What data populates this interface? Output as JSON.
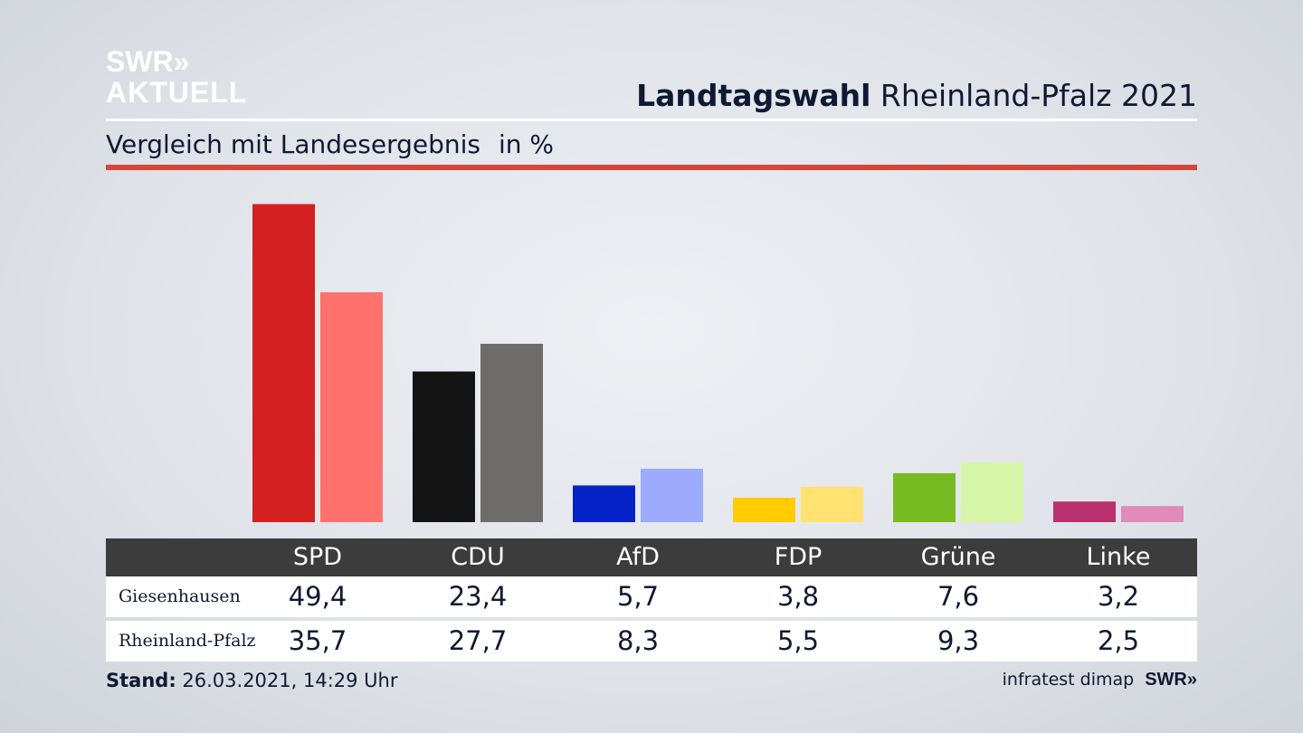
{
  "brand": {
    "line1": "SWR»",
    "line2": "AKTUELL"
  },
  "header": {
    "title_bold": "Landtagswahl",
    "title_rest": " Rheinland-Pfalz 2021"
  },
  "subtitle": {
    "text": "Vergleich mit Landesergebnis",
    "unit": "in %"
  },
  "chart_data": {
    "type": "bar",
    "title": "Landtagswahl Rheinland-Pfalz 2021",
    "subtitle": "Vergleich mit Landesergebnis",
    "unit": "in %",
    "categories": [
      "SPD",
      "CDU",
      "AfD",
      "FDP",
      "Grüne",
      "Linke"
    ],
    "series": [
      {
        "name": "Giesenhausen",
        "values": [
          49.4,
          23.4,
          5.7,
          3.8,
          7.6,
          3.2
        ],
        "display": [
          "49,4",
          "23,4",
          "5,7",
          "3,8",
          "7,6",
          "3,2"
        ]
      },
      {
        "name": "Rheinland-Pfalz",
        "values": [
          35.7,
          27.7,
          8.3,
          5.5,
          9.3,
          2.5
        ],
        "display": [
          "35,7",
          "27,7",
          "8,3",
          "5,5",
          "9,3",
          "2,5"
        ]
      }
    ],
    "colors": {
      "Giesenhausen": [
        "#d42020",
        "#141414",
        "#0322c8",
        "#ffcc00",
        "#77bb22",
        "#b9306e"
      ],
      "Rheinland-Pfalz": [
        "#ff716c",
        "#6e6c6a",
        "#9dabff",
        "#ffe272",
        "#d6f5a8",
        "#e08bb8"
      ]
    },
    "ylim": [
      0,
      52
    ]
  },
  "footer": {
    "stand_label": "Stand:",
    "stand_value": " 26.03.2021, 14:29 Uhr",
    "source": "infratest dimap",
    "source_brand": "SWR»"
  }
}
